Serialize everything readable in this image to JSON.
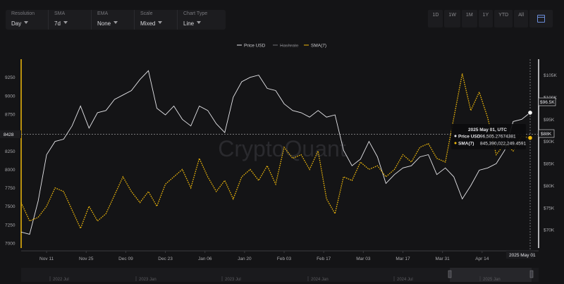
{
  "controls": [
    {
      "label": "Resolution",
      "value": "Day"
    },
    {
      "label": "SMA",
      "value": "7d"
    },
    {
      "label": "EMA",
      "value": "None"
    },
    {
      "label": "Scale",
      "value": "Mixed"
    },
    {
      "label": "Chart Type",
      "value": "Line"
    }
  ],
  "ranges": [
    "1D",
    "1W",
    "1M",
    "1Y",
    "YTD",
    "All"
  ],
  "watermark": "CryptoQuant",
  "colors": {
    "price": "#e6e6ea",
    "sma": "#f0b90b",
    "hashrate_legend": "#707074",
    "background": "#141416"
  },
  "chart_data": {
    "type": "line",
    "legend": {
      "placement": "top-center",
      "entries": [
        "Price USD",
        "Hashrate",
        "SMA(7)"
      ]
    },
    "x_tick_labels": [
      "Nov 11",
      "Nov 25",
      "Dec 09",
      "Dec 23",
      "Jan 06",
      "Jan 20",
      "Feb 03",
      "Feb 17",
      "Mar 03",
      "Mar 17",
      "Mar 31",
      "Apr 14"
    ],
    "x_range": [
      "2024-11-02",
      "2025-05-01"
    ],
    "left_axis": {
      "ticks": [
        "9250",
        "9000",
        "8750",
        "8500",
        "8250",
        "8000",
        "7750",
        "7500",
        "7250",
        "7000"
      ],
      "range": [
        7000,
        9400
      ]
    },
    "right_axis": {
      "ticks": [
        "$105K",
        "$100K",
        "$95K",
        "$90K",
        "$85K",
        "$80K",
        "$75K",
        "$70K"
      ],
      "range": [
        67000,
        107000
      ]
    },
    "crosshair": {
      "left_value_label": "8428",
      "right_value_label": "$88K",
      "right_marker_label": "$96.5K",
      "x_label": "2025 May 01"
    },
    "tooltip": {
      "date": "2025 May 01, UTC",
      "rows": [
        {
          "name": "Price USD",
          "value": "96,505.27674381"
        },
        {
          "name": "SMA(7)",
          "value": "845,390,022,249.4591"
        }
      ]
    },
    "navigator_labels": [
      "2022 Jul",
      "2023 Jan",
      "2023 Jul",
      "2024 Jan",
      "2024 Jul",
      "2025 Jan"
    ],
    "series": [
      {
        "name": "Price USD",
        "axis": "right",
        "x": [
          "2024-11-02",
          "2024-11-05",
          "2024-11-08",
          "2024-11-11",
          "2024-11-14",
          "2024-11-17",
          "2024-11-20",
          "2024-11-23",
          "2024-11-26",
          "2024-11-29",
          "2024-12-02",
          "2024-12-05",
          "2024-12-08",
          "2024-12-11",
          "2024-12-14",
          "2024-12-17",
          "2024-12-20",
          "2024-12-23",
          "2024-12-26",
          "2024-12-29",
          "2025-01-01",
          "2025-01-04",
          "2025-01-07",
          "2025-01-10",
          "2025-01-13",
          "2025-01-16",
          "2025-01-19",
          "2025-01-22",
          "2025-01-25",
          "2025-01-28",
          "2025-01-31",
          "2025-02-03",
          "2025-02-06",
          "2025-02-09",
          "2025-02-12",
          "2025-02-15",
          "2025-02-18",
          "2025-02-21",
          "2025-02-24",
          "2025-02-27",
          "2025-03-02",
          "2025-03-05",
          "2025-03-08",
          "2025-03-11",
          "2025-03-14",
          "2025-03-17",
          "2025-03-20",
          "2025-03-23",
          "2025-03-26",
          "2025-03-29",
          "2025-04-01",
          "2025-04-04",
          "2025-04-07",
          "2025-04-10",
          "2025-04-13",
          "2025-04-16",
          "2025-04-19",
          "2025-04-22",
          "2025-04-25",
          "2025-04-28",
          "2025-05-01"
        ],
        "values": [
          69500,
          69000,
          76500,
          87000,
          90000,
          90500,
          93500,
          98000,
          93000,
          96500,
          97000,
          99500,
          100500,
          101500,
          104000,
          106000,
          97500,
          96000,
          98000,
          95000,
          93500,
          98000,
          97000,
          94000,
          92000,
          100000,
          103500,
          104500,
          105000,
          102000,
          101500,
          98500,
          97000,
          96500,
          95500,
          97000,
          95500,
          96000,
          88000,
          84500,
          86000,
          90000,
          86500,
          80500,
          82500,
          84000,
          84500,
          86500,
          87000,
          82500,
          84000,
          82000,
          77000,
          80000,
          83500,
          84000,
          85000,
          88000,
          94500,
          95000,
          96500
        ]
      },
      {
        "name": "SMA(7)",
        "axis": "left",
        "x": [
          "2024-11-02",
          "2024-11-05",
          "2024-11-08",
          "2024-11-11",
          "2024-11-14",
          "2024-11-17",
          "2024-11-20",
          "2024-11-23",
          "2024-11-26",
          "2024-11-29",
          "2024-12-02",
          "2024-12-05",
          "2024-12-08",
          "2024-12-11",
          "2024-12-14",
          "2024-12-17",
          "2024-12-20",
          "2024-12-23",
          "2024-12-26",
          "2024-12-29",
          "2025-01-01",
          "2025-01-04",
          "2025-01-07",
          "2025-01-10",
          "2025-01-13",
          "2025-01-16",
          "2025-01-19",
          "2025-01-22",
          "2025-01-25",
          "2025-01-28",
          "2025-01-31",
          "2025-02-03",
          "2025-02-06",
          "2025-02-09",
          "2025-02-12",
          "2025-02-15",
          "2025-02-18",
          "2025-02-21",
          "2025-02-24",
          "2025-02-27",
          "2025-03-02",
          "2025-03-05",
          "2025-03-08",
          "2025-03-11",
          "2025-03-14",
          "2025-03-17",
          "2025-03-20",
          "2025-03-23",
          "2025-03-26",
          "2025-03-29",
          "2025-04-01",
          "2025-04-04",
          "2025-04-07",
          "2025-04-10",
          "2025-04-13",
          "2025-04-16",
          "2025-04-19",
          "2025-04-22",
          "2025-04-25",
          "2025-04-28",
          "2025-05-01"
        ],
        "values": [
          7550,
          7300,
          7350,
          7500,
          7750,
          7700,
          7450,
          7200,
          7500,
          7300,
          7400,
          7650,
          7900,
          7700,
          7550,
          7700,
          7500,
          7800,
          7900,
          8000,
          7750,
          8150,
          7900,
          7700,
          7850,
          7600,
          7900,
          8000,
          7850,
          8050,
          7800,
          8300,
          8150,
          8200,
          8000,
          8250,
          7600,
          7400,
          7900,
          7850,
          8100,
          8000,
          8050,
          7900,
          8000,
          8200,
          8100,
          8300,
          8350,
          8150,
          8100,
          8700,
          9300,
          8800,
          9050,
          8700,
          8200,
          8350,
          8250,
          8450,
          8428
        ]
      }
    ]
  }
}
